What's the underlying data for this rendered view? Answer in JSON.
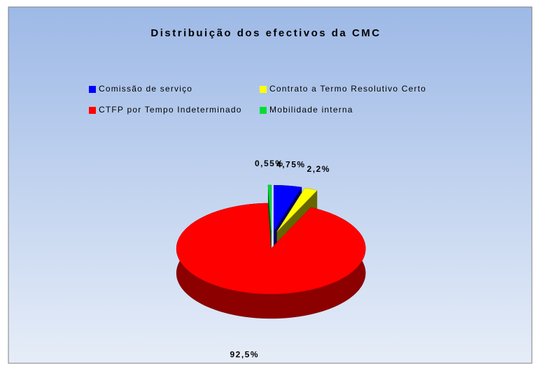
{
  "chart_data": {
    "type": "pie3d",
    "title": "Distribuição dos efectivos da CMC",
    "categories": [
      "Comissão de serviço",
      "Contrato a Termo Resolutivo Certo",
      "CTFP por Tempo Indeterminado",
      "Mobilidade interna"
    ],
    "values": [
      4.75,
      2.2,
      92.5,
      0.55
    ],
    "value_labels": [
      "4,75%",
      "2,2%",
      "92,5%",
      "0,55%"
    ],
    "colors": [
      "#0000ff",
      "#ffff00",
      "#ff0000",
      "#00dd33"
    ],
    "legend": "top"
  }
}
